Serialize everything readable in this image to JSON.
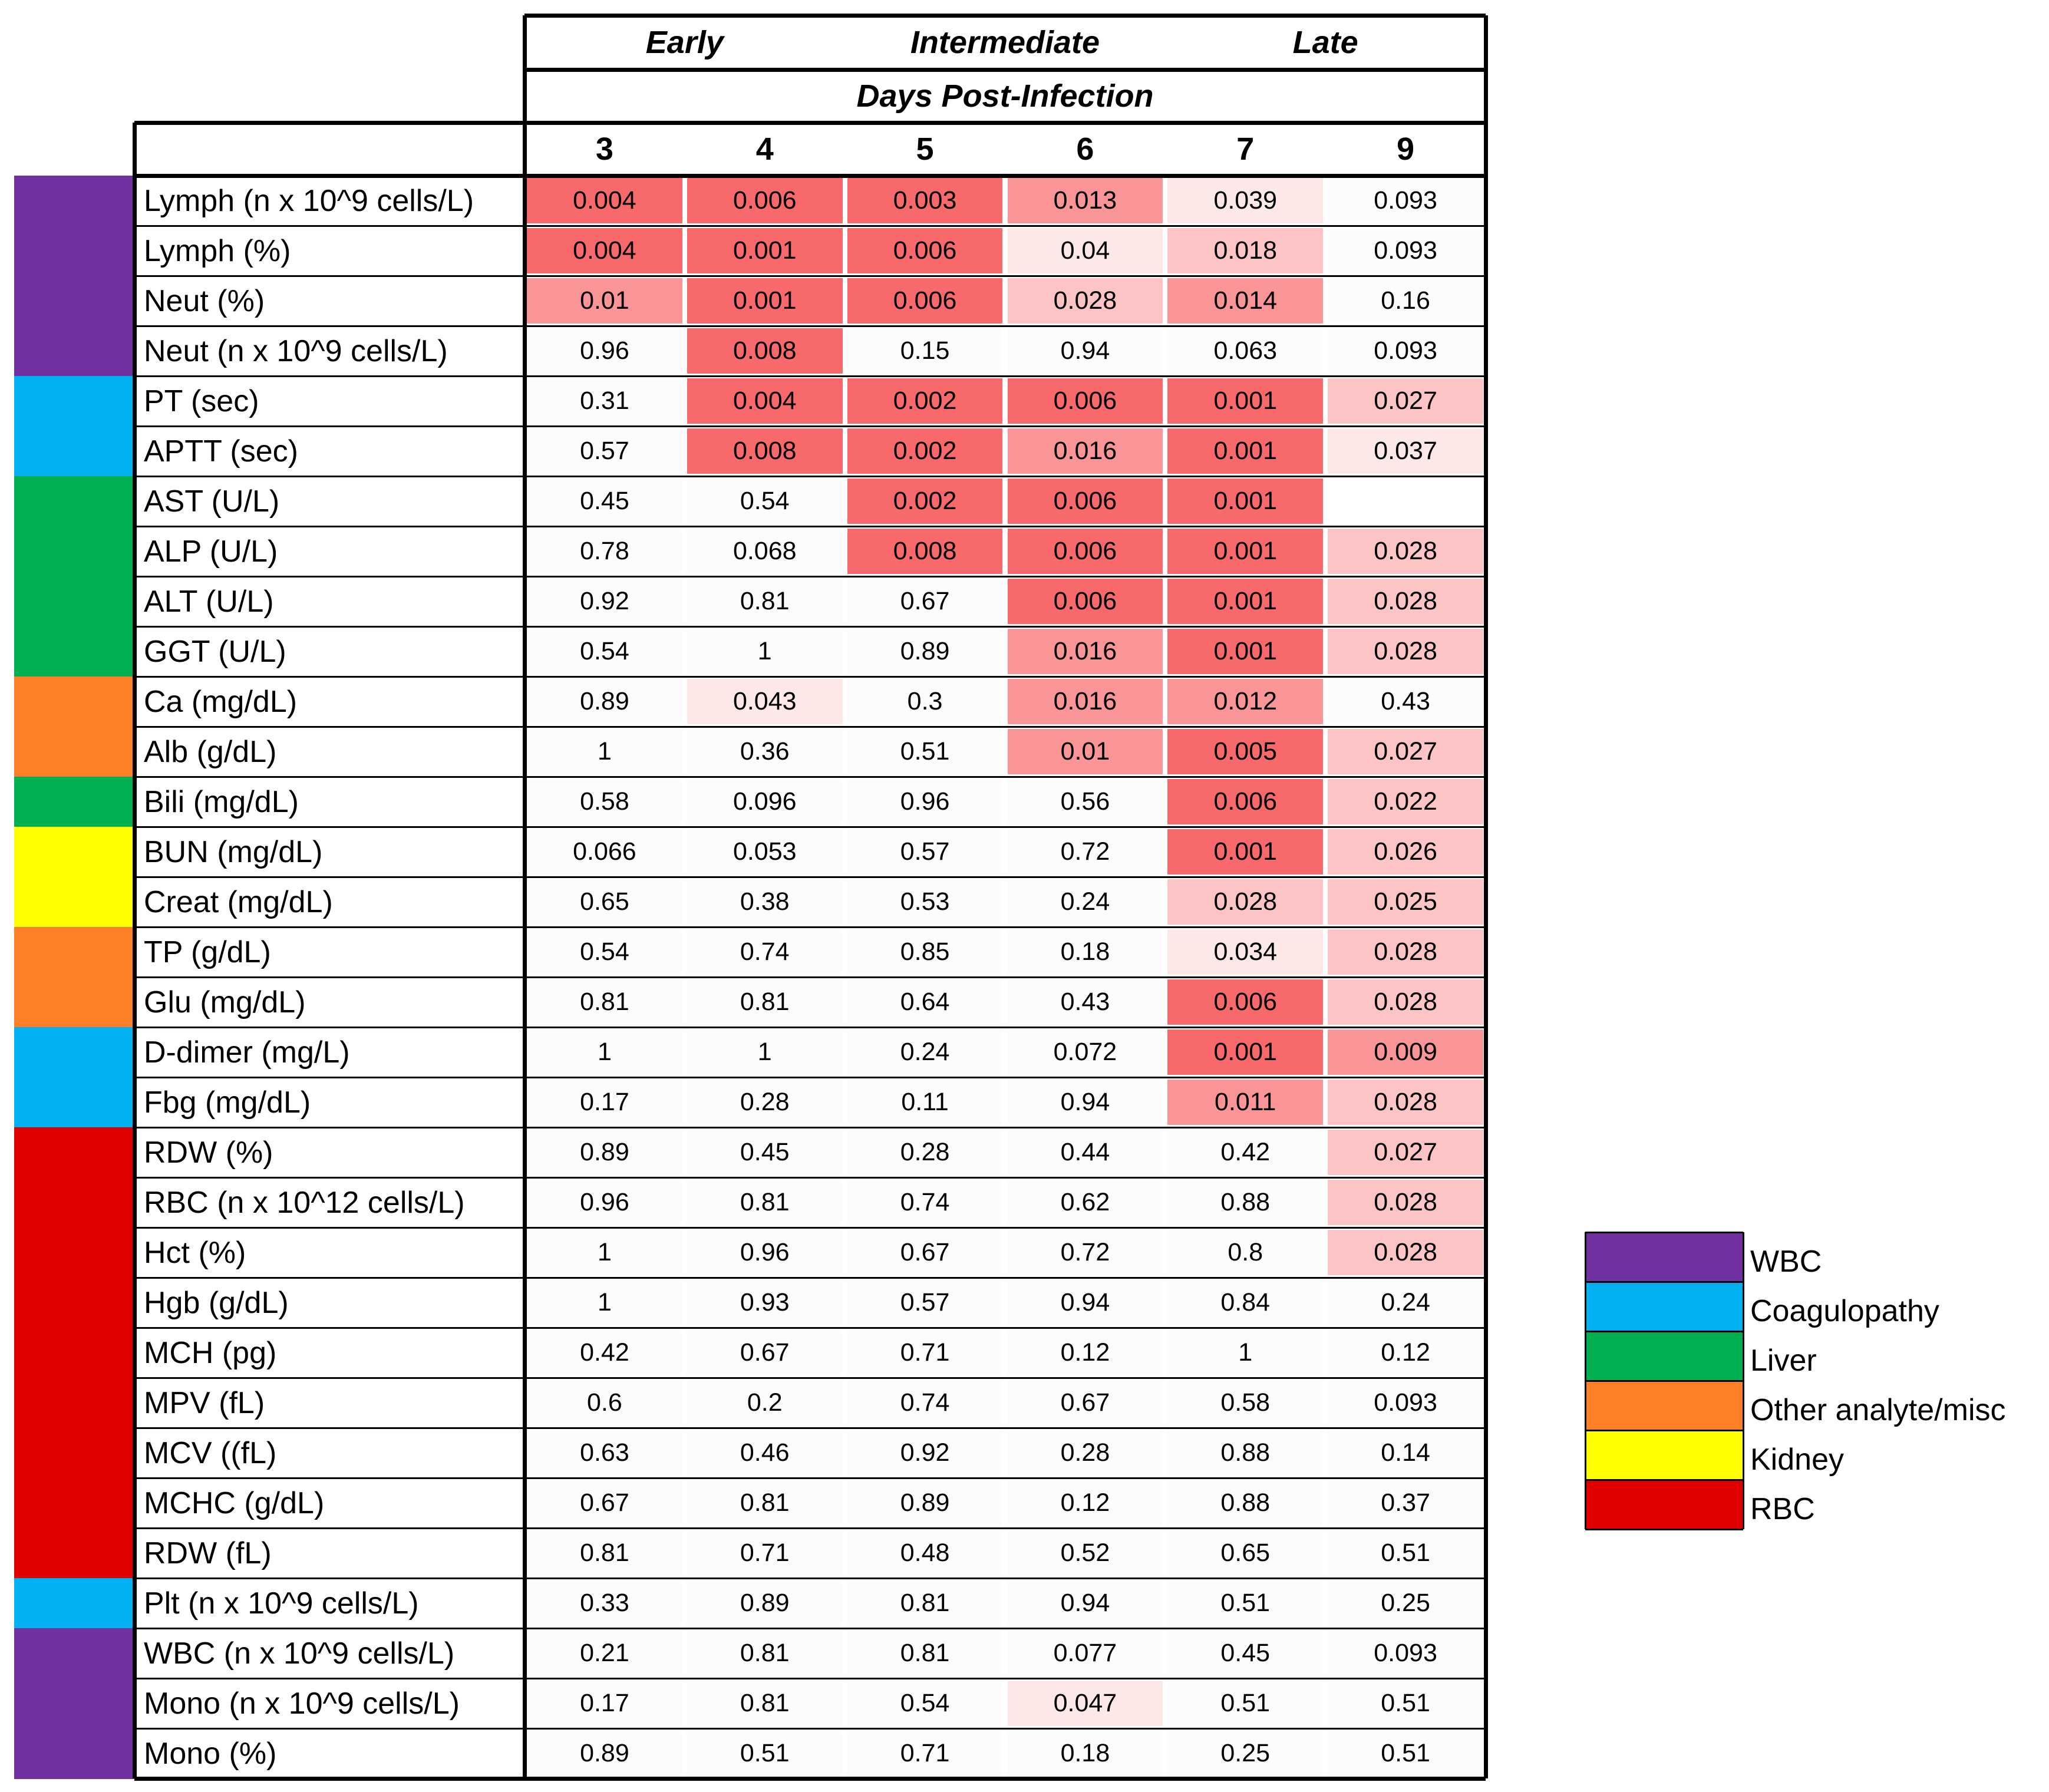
{
  "chart_data": {
    "type": "table",
    "period_headers": [
      "Early",
      "Intermediate",
      "Late"
    ],
    "subheader": "Days Post-Infection",
    "days": [
      "3",
      "4",
      "5",
      "6",
      "7",
      "9"
    ],
    "rows": [
      {
        "label": "Lymph (n x 10^9 cells/L)",
        "group": "WBC",
        "values": [
          "0.004",
          "0.006",
          "0.003",
          "0.013",
          "0.039",
          "0.093"
        ]
      },
      {
        "label": "Lymph (%)",
        "group": "WBC",
        "values": [
          "0.004",
          "0.001",
          "0.006",
          "0.04",
          "0.018",
          "0.093"
        ]
      },
      {
        "label": "Neut (%)",
        "group": "WBC",
        "values": [
          "0.01",
          "0.001",
          "0.006",
          "0.028",
          "0.014",
          "0.16"
        ]
      },
      {
        "label": "Neut  (n x 10^9 cells/L)",
        "group": "WBC",
        "values": [
          "0.96",
          "0.008",
          "0.15",
          "0.94",
          "0.063",
          "0.093"
        ]
      },
      {
        "label": "PT (sec)",
        "group": "Coagulopathy",
        "values": [
          "0.31",
          "0.004",
          "0.002",
          "0.006",
          "0.001",
          "0.027"
        ]
      },
      {
        "label": "APTT (sec)",
        "group": "Coagulopathy",
        "values": [
          "0.57",
          "0.008",
          "0.002",
          "0.016",
          "0.001",
          "0.037"
        ]
      },
      {
        "label": "AST (U/L)",
        "group": "Liver",
        "values": [
          "0.45",
          "0.54",
          "0.002",
          "0.006",
          "0.001",
          ""
        ]
      },
      {
        "label": "ALP (U/L)",
        "group": "Liver",
        "values": [
          "0.78",
          "0.068",
          "0.008",
          "0.006",
          "0.001",
          "0.028"
        ]
      },
      {
        "label": "ALT (U/L)",
        "group": "Liver",
        "values": [
          "0.92",
          "0.81",
          "0.67",
          "0.006",
          "0.001",
          "0.028"
        ]
      },
      {
        "label": "GGT (U/L)",
        "group": "Liver",
        "values": [
          "0.54",
          "1",
          "0.89",
          "0.016",
          "0.001",
          "0.028"
        ]
      },
      {
        "label": "Ca (mg/dL)",
        "group": "Other analyte/misc",
        "values": [
          "0.89",
          "0.043",
          "0.3",
          "0.016",
          "0.012",
          "0.43"
        ]
      },
      {
        "label": "Alb (g/dL)",
        "group": "Other analyte/misc",
        "values": [
          "1",
          "0.36",
          "0.51",
          "0.01",
          "0.005",
          "0.027"
        ]
      },
      {
        "label": "Bili (mg/dL)",
        "group": "Liver",
        "values": [
          "0.58",
          "0.096",
          "0.96",
          "0.56",
          "0.006",
          "0.022"
        ]
      },
      {
        "label": "BUN (mg/dL)",
        "group": "Kidney",
        "values": [
          "0.066",
          "0.053",
          "0.57",
          "0.72",
          "0.001",
          "0.026"
        ]
      },
      {
        "label": "Creat (mg/dL)",
        "group": "Kidney",
        "values": [
          "0.65",
          "0.38",
          "0.53",
          "0.24",
          "0.028",
          "0.025"
        ]
      },
      {
        "label": "TP (g/dL)",
        "group": "Other analyte/misc",
        "values": [
          "0.54",
          "0.74",
          "0.85",
          "0.18",
          "0.034",
          "0.028"
        ]
      },
      {
        "label": "Glu (mg/dL)",
        "group": "Other analyte/misc",
        "values": [
          "0.81",
          "0.81",
          "0.64",
          "0.43",
          "0.006",
          "0.028"
        ]
      },
      {
        "label": "D-dimer (mg/L)",
        "group": "Coagulopathy",
        "values": [
          "1",
          "1",
          "0.24",
          "0.072",
          "0.001",
          "0.009"
        ]
      },
      {
        "label": "Fbg (mg/dL)",
        "group": "Coagulopathy",
        "values": [
          "0.17",
          "0.28",
          "0.11",
          "0.94",
          "0.011",
          "0.028"
        ]
      },
      {
        "label": "RDW (%)",
        "group": "RBC",
        "values": [
          "0.89",
          "0.45",
          "0.28",
          "0.44",
          "0.42",
          "0.027"
        ]
      },
      {
        "label": "RBC  (n x 10^12 cells/L)",
        "group": "RBC",
        "values": [
          "0.96",
          "0.81",
          "0.74",
          "0.62",
          "0.88",
          "0.028"
        ]
      },
      {
        "label": "Hct (%)",
        "group": "RBC",
        "values": [
          "1",
          "0.96",
          "0.67",
          "0.72",
          "0.8",
          "0.028"
        ]
      },
      {
        "label": "Hgb (g/dL)",
        "group": "RBC",
        "values": [
          "1",
          "0.93",
          "0.57",
          "0.94",
          "0.84",
          "0.24"
        ]
      },
      {
        "label": "MCH (pg)",
        "group": "RBC",
        "values": [
          "0.42",
          "0.67",
          "0.71",
          "0.12",
          "1",
          "0.12"
        ]
      },
      {
        "label": "MPV (fL)",
        "group": "RBC",
        "values": [
          "0.6",
          "0.2",
          "0.74",
          "0.67",
          "0.58",
          "0.093"
        ]
      },
      {
        "label": "MCV ((fL)",
        "group": "RBC",
        "values": [
          "0.63",
          "0.46",
          "0.92",
          "0.28",
          "0.88",
          "0.14"
        ]
      },
      {
        "label": "MCHC (g/dL)",
        "group": "RBC",
        "values": [
          "0.67",
          "0.81",
          "0.89",
          "0.12",
          "0.88",
          "0.37"
        ]
      },
      {
        "label": "RDW (fL)",
        "group": "RBC",
        "values": [
          "0.81",
          "0.71",
          "0.48",
          "0.52",
          "0.65",
          "0.51"
        ]
      },
      {
        "label": "Plt  (n x 10^9 cells/L)",
        "group": "Coagulopathy",
        "values": [
          "0.33",
          "0.89",
          "0.81",
          "0.94",
          "0.51",
          "0.25"
        ]
      },
      {
        "label": "WBC (n x 10^9 cells/L)",
        "group": "WBC",
        "values": [
          "0.21",
          "0.81",
          "0.81",
          "0.077",
          "0.45",
          "0.093"
        ]
      },
      {
        "label": "Mono  (n x 10^9 cells/L)",
        "group": "WBC",
        "values": [
          "0.17",
          "0.81",
          "0.54",
          "0.047",
          "0.51",
          "0.51"
        ]
      },
      {
        "label": "Mono (%)",
        "group": "WBC",
        "values": [
          "0.89",
          "0.51",
          "0.71",
          "0.18",
          "0.25",
          "0.51"
        ]
      }
    ],
    "legend": [
      {
        "name": "WBC",
        "color": "#7030a0"
      },
      {
        "name": "Coagulopathy",
        "color": "#00b0f0"
      },
      {
        "name": "Liver",
        "color": "#00b050"
      },
      {
        "name": "Other analyte/misc",
        "color": "#ff7f27"
      },
      {
        "name": "Kidney",
        "color": "#ffff00"
      },
      {
        "name": "RBC",
        "color": "#e00000"
      }
    ],
    "colors": {
      "strong": "#f8696b",
      "medium": "#fa9597",
      "light": "#fcc4c5",
      "faint": "#fde8e8",
      "neutral": "#fcfcff"
    }
  }
}
